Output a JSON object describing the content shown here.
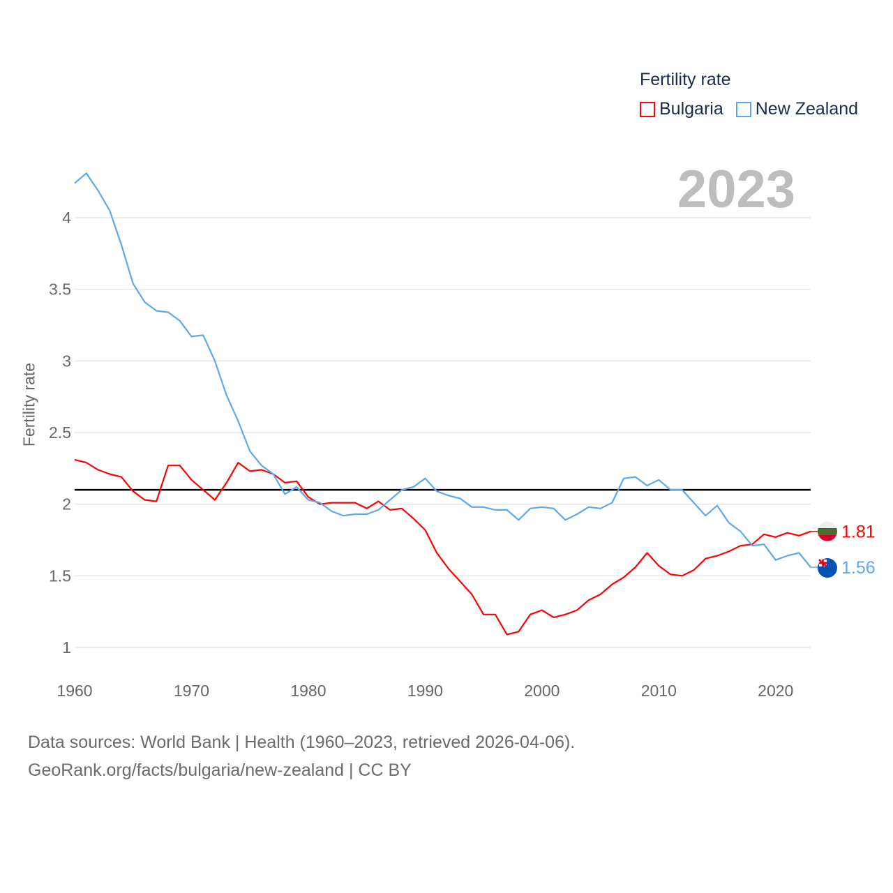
{
  "legend": {
    "title": "Fertility rate",
    "items": [
      {
        "label": "Bulgaria",
        "color": "#ff0000"
      },
      {
        "label": "New Zealand",
        "color": "#5ca8eb"
      }
    ]
  },
  "current_year": "2023",
  "footer": {
    "line1": "Data sources: World Bank | Health (1960–2023, retrieved 2026-04-06).",
    "line2": "GeoRank.org/facts/bulgaria/new-zealand | CC BY"
  },
  "chart_data": {
    "type": "line",
    "title": "",
    "xlabel": "",
    "ylabel": "Fertility rate",
    "xlim": [
      1960,
      2023
    ],
    "ylim": [
      0.85,
      4.35
    ],
    "xticks": [
      1960,
      1970,
      1980,
      1990,
      2000,
      2010,
      2020
    ],
    "yticks": [
      1,
      1.5,
      2,
      2.5,
      3,
      3.5,
      4
    ],
    "ytick_labels": [
      "1",
      "1.5",
      "2",
      "2.5",
      "3",
      "3.5",
      "4"
    ],
    "grid": "horizontal",
    "legend_position": "top-right",
    "reference_line": {
      "y": 2.1,
      "color": "#000000"
    },
    "x": [
      1960,
      1961,
      1962,
      1963,
      1964,
      1965,
      1966,
      1967,
      1968,
      1969,
      1970,
      1971,
      1972,
      1973,
      1974,
      1975,
      1976,
      1977,
      1978,
      1979,
      1980,
      1981,
      1982,
      1983,
      1984,
      1985,
      1986,
      1987,
      1988,
      1989,
      1990,
      1991,
      1992,
      1993,
      1994,
      1995,
      1996,
      1997,
      1998,
      1999,
      2000,
      2001,
      2002,
      2003,
      2004,
      2005,
      2006,
      2007,
      2008,
      2009,
      2010,
      2011,
      2012,
      2013,
      2014,
      2015,
      2016,
      2017,
      2018,
      2019,
      2020,
      2021,
      2022,
      2023
    ],
    "series": [
      {
        "name": "Bulgaria",
        "color": "#ff0000",
        "end_label": "1.81",
        "values": [
          2.31,
          2.29,
          2.24,
          2.21,
          2.19,
          2.09,
          2.03,
          2.02,
          2.27,
          2.27,
          2.17,
          2.1,
          2.03,
          2.15,
          2.29,
          2.23,
          2.24,
          2.21,
          2.15,
          2.16,
          2.05,
          2.0,
          2.01,
          2.01,
          2.01,
          1.97,
          2.02,
          1.96,
          1.97,
          1.9,
          1.82,
          1.66,
          1.55,
          1.46,
          1.37,
          1.23,
          1.23,
          1.09,
          1.11,
          1.23,
          1.26,
          1.21,
          1.23,
          1.26,
          1.33,
          1.37,
          1.44,
          1.49,
          1.56,
          1.66,
          1.57,
          1.51,
          1.5,
          1.54,
          1.62,
          1.64,
          1.67,
          1.71,
          1.72,
          1.79,
          1.77,
          1.8,
          1.78,
          1.81
        ]
      },
      {
        "name": "New Zealand",
        "color": "#5ca8eb",
        "end_label": "1.56",
        "values": [
          4.24,
          4.31,
          4.19,
          4.05,
          3.81,
          3.54,
          3.41,
          3.35,
          3.34,
          3.28,
          3.17,
          3.18,
          3.0,
          2.76,
          2.58,
          2.37,
          2.27,
          2.21,
          2.07,
          2.12,
          2.03,
          2.01,
          1.95,
          1.92,
          1.93,
          1.93,
          1.96,
          2.03,
          2.1,
          2.12,
          2.18,
          2.09,
          2.06,
          2.04,
          1.98,
          1.98,
          1.96,
          1.96,
          1.89,
          1.97,
          1.98,
          1.97,
          1.89,
          1.93,
          1.98,
          1.97,
          2.01,
          2.18,
          2.19,
          2.13,
          2.17,
          2.1,
          2.1,
          2.01,
          1.92,
          1.99,
          1.87,
          1.81,
          1.71,
          1.72,
          1.61,
          1.64,
          1.66,
          1.56
        ]
      }
    ]
  }
}
